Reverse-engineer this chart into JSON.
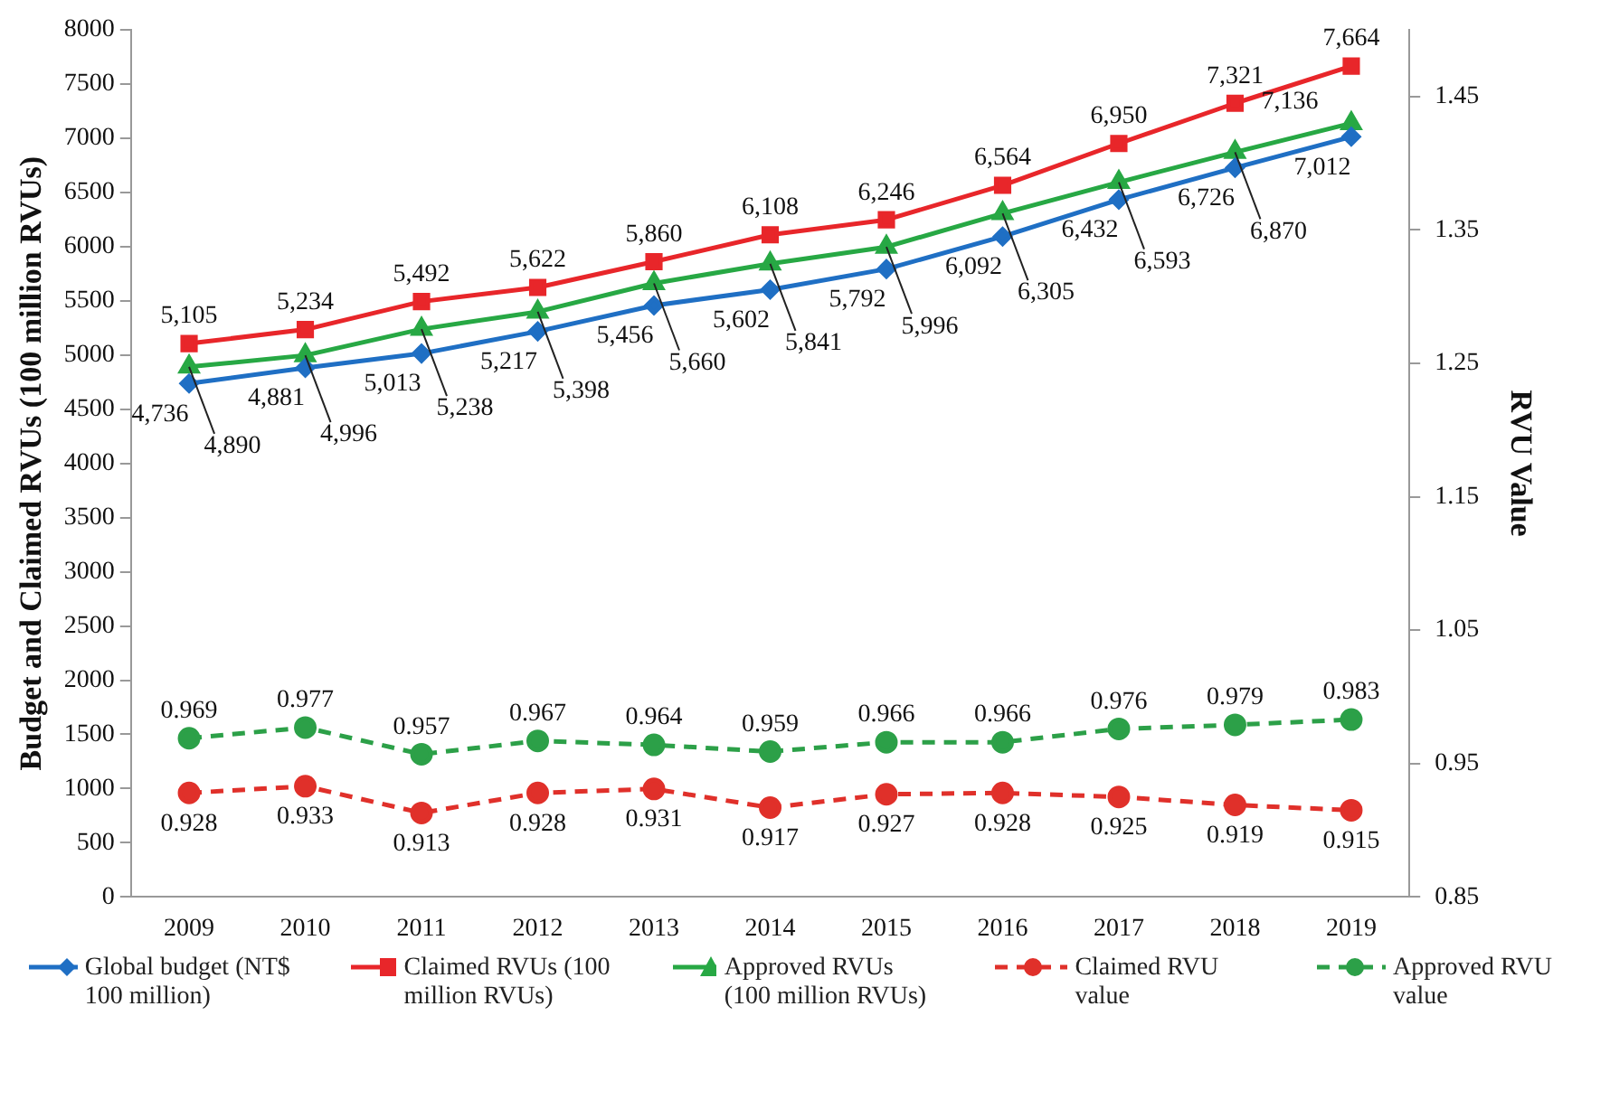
{
  "chart_data": {
    "type": "line",
    "categories": [
      "2009",
      "2010",
      "2011",
      "2012",
      "2013",
      "2014",
      "2015",
      "2016",
      "2017",
      "2018",
      "2019"
    ],
    "ylabel": "Budget and Claimed RVUs (100 million RVUs)",
    "y2label": "RVU Value",
    "ylim": [
      0,
      8000
    ],
    "yticks": [
      0,
      500,
      1000,
      1500,
      2000,
      2500,
      3000,
      3500,
      4000,
      4500,
      5000,
      5500,
      6000,
      6500,
      7000,
      7500,
      8000
    ],
    "y2lim": [
      0.85,
      1.5
    ],
    "y2ticks": [
      0.85,
      0.95,
      1.05,
      1.15,
      1.25,
      1.35,
      1.45
    ],
    "grid": false,
    "legend": "bottom",
    "series": [
      {
        "name": "Global budget (NT$ 100 million)",
        "color": "#1f6fc4",
        "marker": "diamond",
        "line_style": "solid",
        "values": [
          4736,
          4881,
          5013,
          5217,
          5456,
          5602,
          5792,
          6092,
          6432,
          6726,
          7012
        ],
        "value_labels": [
          "4,736",
          "4,881",
          "5,013",
          "5,217",
          "5,456",
          "5,602",
          "5,792",
          "6,092",
          "6,432",
          "6,726",
          "7,012"
        ]
      },
      {
        "name": "Claimed RVUs (100 million RVUs)",
        "color": "#e8262a",
        "marker": "square",
        "line_style": "solid",
        "values": [
          5105,
          5234,
          5492,
          5622,
          5860,
          6108,
          6246,
          6564,
          6950,
          7321,
          7664
        ],
        "value_labels": [
          "5,105",
          "5,234",
          "5,492",
          "5,622",
          "5,860",
          "6,108",
          "6,246",
          "6,564",
          "6,950",
          "7,321",
          "7,664"
        ]
      },
      {
        "name": "Approved RVUs (100 million RVUs)",
        "color": "#27a844",
        "marker": "triangle",
        "line_style": "solid",
        "values": [
          4890,
          4996,
          5238,
          5398,
          5660,
          5841,
          5996,
          6305,
          6593,
          6870,
          7136
        ],
        "value_labels": [
          "4,890",
          "4,996",
          "5,238",
          "5,398",
          "5,660",
          "5,841",
          "5,996",
          "6,305",
          "6,593",
          "6,870",
          "7,136"
        ]
      },
      {
        "name": "Claimed RVU value",
        "color": "#e0302a",
        "marker": "circle",
        "line_style": "dashed",
        "axis": "y2",
        "values": [
          0.928,
          0.933,
          0.913,
          0.928,
          0.931,
          0.917,
          0.927,
          0.928,
          0.925,
          0.919,
          0.915
        ],
        "value_labels": [
          "0.928",
          "0.933",
          "0.913",
          "0.928",
          "0.931",
          "0.917",
          "0.927",
          "0.928",
          "0.925",
          "0.919",
          "0.915"
        ]
      },
      {
        "name": "Approved RVU value",
        "color": "#2ca048",
        "marker": "circle",
        "line_style": "dashed",
        "axis": "y2",
        "values": [
          0.969,
          0.977,
          0.957,
          0.967,
          0.964,
          0.959,
          0.966,
          0.966,
          0.976,
          0.979,
          0.983
        ],
        "value_labels": [
          "0.969",
          "0.977",
          "0.957",
          "0.967",
          "0.964",
          "0.959",
          "0.966",
          "0.966",
          "0.976",
          "0.979",
          "0.983"
        ]
      }
    ]
  }
}
